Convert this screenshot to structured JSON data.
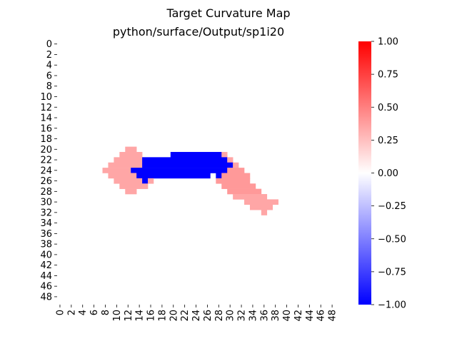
{
  "chart_data": {
    "type": "heatmap",
    "suptitle": "Target Curvature Map",
    "title": "python/surface/Output/sp1i20",
    "rows": 50,
    "cols": 50,
    "x_tick_labels": [
      "0",
      "2",
      "4",
      "6",
      "8",
      "10",
      "12",
      "14",
      "16",
      "18",
      "20",
      "22",
      "24",
      "26",
      "28",
      "30",
      "32",
      "34",
      "36",
      "38",
      "40",
      "42",
      "44",
      "46",
      "48"
    ],
    "y_tick_labels": [
      "0",
      "2",
      "4",
      "6",
      "8",
      "10",
      "12",
      "14",
      "16",
      "18",
      "20",
      "22",
      "24",
      "26",
      "28",
      "30",
      "32",
      "34",
      "36",
      "38",
      "40",
      "42",
      "44",
      "46",
      "48"
    ],
    "colorbar": {
      "colormap": "bwr",
      "min": -1.0,
      "max": 1.0,
      "tick_labels": [
        "1.00",
        "0.75",
        "0.50",
        "0.25",
        "0.00",
        "−0.25",
        "−0.50",
        "−0.75",
        "−1.00"
      ],
      "tick_values": [
        1.0,
        0.75,
        0.5,
        0.25,
        0.0,
        -0.25,
        -0.5,
        -0.75,
        -1.0
      ]
    },
    "default_value": 0,
    "cells": [
      {
        "row": 20,
        "col_start": 12,
        "col_end": 13,
        "value": 0.35
      },
      {
        "row": 21,
        "col_start": 11,
        "col_end": 14,
        "value": 0.35
      },
      {
        "row": 21,
        "col_start": 20,
        "col_end": 28,
        "value": -1
      },
      {
        "row": 21,
        "col_start": 29,
        "col_end": 29,
        "value": 0.35
      },
      {
        "row": 22,
        "col_start": 10,
        "col_end": 14,
        "value": 0.35
      },
      {
        "row": 22,
        "col_start": 15,
        "col_end": 29,
        "value": -1
      },
      {
        "row": 22,
        "col_start": 30,
        "col_end": 30,
        "value": 0.35
      },
      {
        "row": 23,
        "col_start": 9,
        "col_end": 14,
        "value": 0.35
      },
      {
        "row": 23,
        "col_start": 15,
        "col_end": 30,
        "value": -1
      },
      {
        "row": 23,
        "col_start": 31,
        "col_end": 31,
        "value": 0.35
      },
      {
        "row": 24,
        "col_start": 8,
        "col_end": 12,
        "value": 0.35
      },
      {
        "row": 24,
        "col_start": 13,
        "col_end": 29,
        "value": -1
      },
      {
        "row": 24,
        "col_start": 30,
        "col_end": 32,
        "value": 0.4
      },
      {
        "row": 25,
        "col_start": 9,
        "col_end": 13,
        "value": 0.35
      },
      {
        "row": 25,
        "col_start": 14,
        "col_end": 26,
        "value": -1
      },
      {
        "row": 25,
        "col_start": 27,
        "col_end": 27,
        "value": 0
      },
      {
        "row": 25,
        "col_start": 28,
        "col_end": 28,
        "value": -1
      },
      {
        "row": 25,
        "col_start": 29,
        "col_end": 33,
        "value": 0.4
      },
      {
        "row": 26,
        "col_start": 10,
        "col_end": 14,
        "value": 0.35
      },
      {
        "row": 26,
        "col_start": 15,
        "col_end": 15,
        "value": -1
      },
      {
        "row": 26,
        "col_start": 16,
        "col_end": 16,
        "value": 0.35
      },
      {
        "row": 26,
        "col_start": 28,
        "col_end": 33,
        "value": 0.4
      },
      {
        "row": 27,
        "col_start": 11,
        "col_end": 15,
        "value": 0.35
      },
      {
        "row": 27,
        "col_start": 29,
        "col_end": 34,
        "value": 0.4
      },
      {
        "row": 28,
        "col_start": 12,
        "col_end": 13,
        "value": 0.35
      },
      {
        "row": 28,
        "col_start": 30,
        "col_end": 35,
        "value": 0.4
      },
      {
        "row": 29,
        "col_start": 31,
        "col_end": 36,
        "value": 0.35
      },
      {
        "row": 30,
        "col_start": 33,
        "col_end": 38,
        "value": 0.35
      },
      {
        "row": 31,
        "col_start": 34,
        "col_end": 37,
        "value": 0.35
      },
      {
        "row": 32,
        "col_start": 36,
        "col_end": 36,
        "value": 0.35
      }
    ]
  }
}
